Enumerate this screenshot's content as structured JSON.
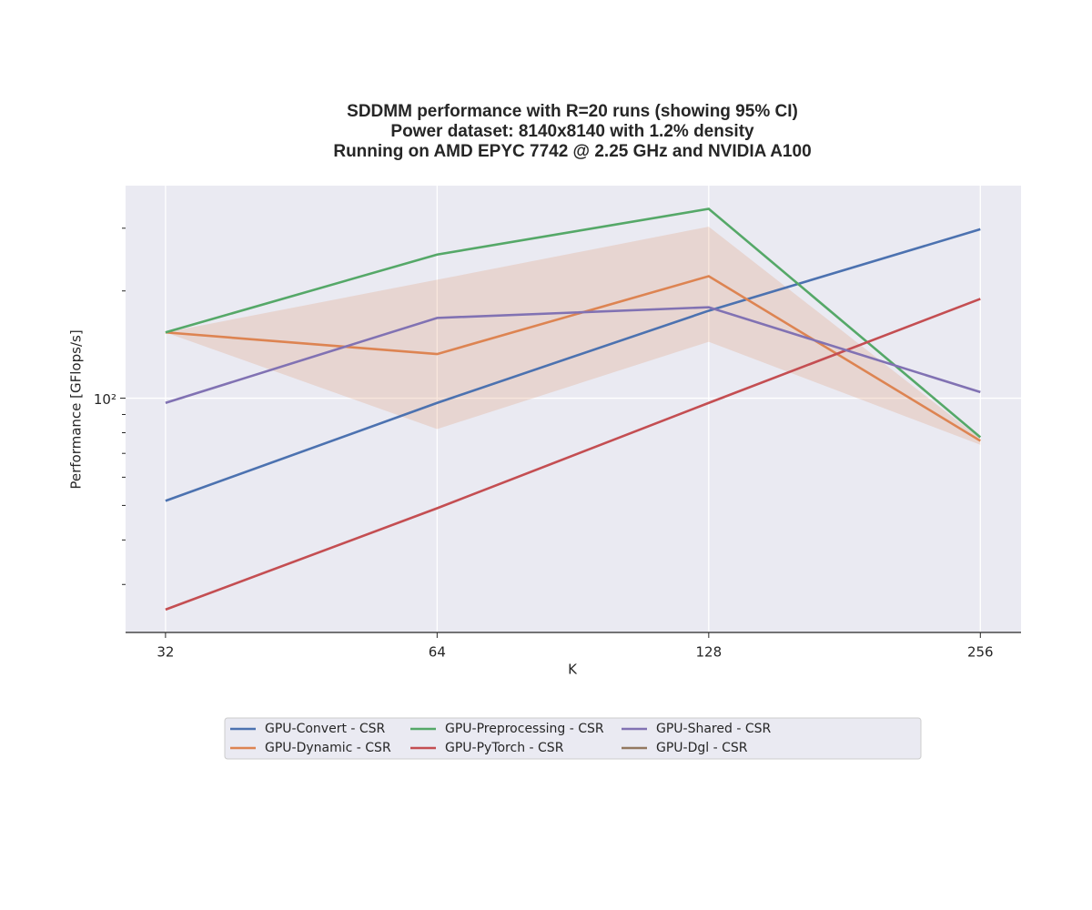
{
  "chart_data": {
    "type": "line",
    "title": [
      "SDDMM performance with R=20 runs (showing 95% CI)",
      "Power dataset: 8140x8140 with 1.2% density",
      "Running on AMD EPYC 7742 @ 2.25 GHz and NVIDIA A100"
    ],
    "xlabel": "K",
    "ylabel": "Performance [GFlops/s]",
    "x": [
      32,
      64,
      128,
      256
    ],
    "xscale": "log2",
    "yscale": "log",
    "xlim": [
      28.9,
      284
    ],
    "ylim": [
      22,
      395
    ],
    "xticks": [
      32,
      64,
      128,
      256
    ],
    "yticks": [
      {
        "value": 100,
        "label": "10²"
      }
    ],
    "yminorticks": [
      30,
      40,
      50,
      60,
      70,
      80,
      90,
      200,
      300
    ],
    "grid": true,
    "legend": "bottom",
    "series": [
      {
        "name": "GPU-Convert - CSR",
        "color": "#4c72b0",
        "values": [
          51.5,
          97,
          176,
          298
        ]
      },
      {
        "name": "GPU-Dynamic - CSR",
        "color": "#dd8452",
        "values": [
          153,
          133,
          220,
          75.9
        ],
        "ci_lower": [
          153,
          81.9,
          144,
          74
        ],
        "ci_upper": [
          153,
          215,
          303,
          77
        ]
      },
      {
        "name": "GPU-Preprocessing - CSR",
        "color": "#55a868",
        "values": [
          153,
          253,
          340,
          77.7
        ]
      },
      {
        "name": "GPU-PyTorch - CSR",
        "color": "#c44e52",
        "values": [
          25.5,
          49.1,
          97,
          190
        ]
      },
      {
        "name": "GPU-Shared - CSR",
        "color": "#8172b3",
        "values": [
          97,
          168,
          180,
          104
        ]
      },
      {
        "name": "GPU-Dgl - CSR",
        "color": "#937860",
        "values": [
          null,
          null,
          null,
          null
        ]
      }
    ]
  }
}
